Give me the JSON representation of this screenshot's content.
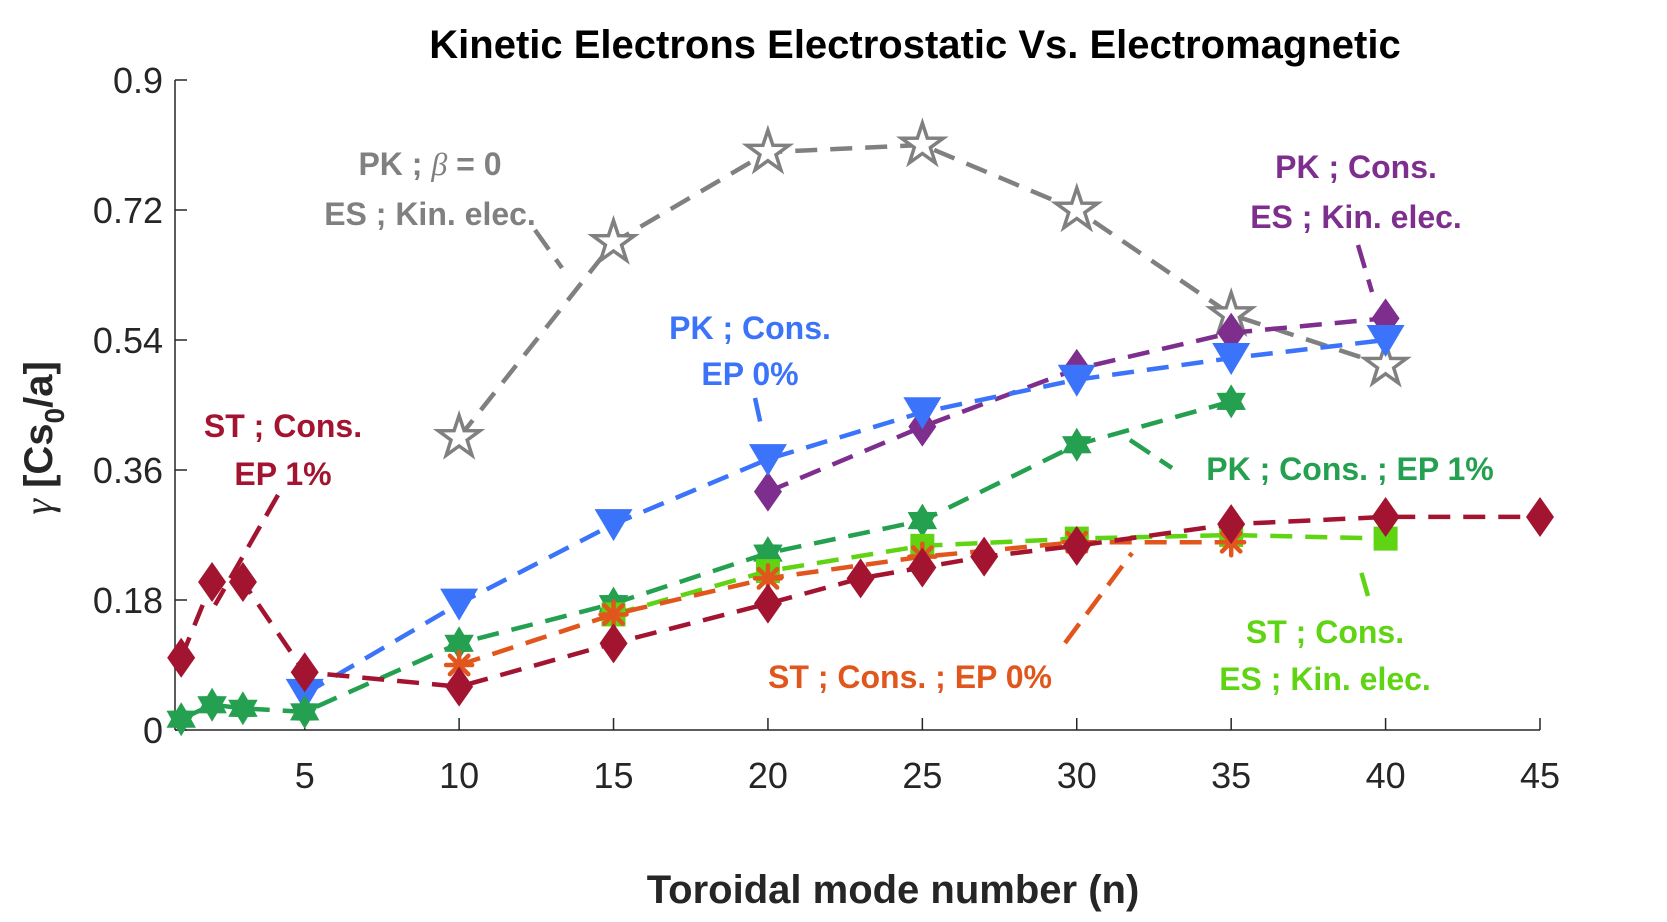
{
  "chart_data": {
    "type": "line",
    "title": "Kinetic Electrons Electrostatic Vs. Electromagnetic",
    "xlabel": "Toroidal mode number (n)",
    "ylabel": {
      "prefix": "γ",
      "main": " [Cs",
      "sub": "0",
      "suffix": "/a]"
    },
    "xlim": [
      0.8,
      45
    ],
    "ylim": [
      0,
      0.9
    ],
    "xticks": [
      5,
      10,
      15,
      20,
      25,
      30,
      35,
      40,
      45
    ],
    "yticks": [
      0,
      0.18,
      0.36,
      0.54,
      0.72,
      0.9
    ],
    "ytick_labels": [
      "0",
      "0.18",
      "0.36",
      "0.54",
      "0.72",
      "0.9"
    ],
    "series": [
      {
        "name": "PK ; β = 0 ES ; Kin. elec.",
        "color": "#808080",
        "marker": "star5",
        "x": [
          10,
          15,
          20,
          25,
          30,
          35,
          40
        ],
        "y": [
          0.405,
          0.675,
          0.8,
          0.81,
          0.72,
          0.575,
          0.505
        ]
      },
      {
        "name": "PK ; Cons. ES ; Kin. elec.",
        "color": "#7E2F8E",
        "marker": "diamond",
        "x": [
          20,
          25,
          30,
          35,
          40
        ],
        "y": [
          0.33,
          0.42,
          0.5,
          0.55,
          0.57
        ]
      },
      {
        "name": "PK ; Cons. EP 0%",
        "color": "#3B73FA",
        "marker": "triangle-down",
        "x": [
          5,
          10,
          15,
          20,
          25,
          30,
          35,
          40
        ],
        "y": [
          0.05,
          0.175,
          0.285,
          0.375,
          0.44,
          0.485,
          0.515,
          0.54
        ]
      },
      {
        "name": "PK ; Cons. ; EP 1%",
        "color": "#24A050",
        "marker": "star6",
        "x": [
          1,
          2,
          3,
          5,
          10,
          15,
          20,
          25,
          30,
          35
        ],
        "y": [
          0.015,
          0.035,
          0.03,
          0.025,
          0.12,
          0.175,
          0.245,
          0.29,
          0.395,
          0.455
        ]
      },
      {
        "name": "ST ; Cons. ES ; Kin. elec.",
        "color": "#5FD413",
        "marker": "square",
        "x": [
          15,
          20,
          25,
          30,
          35,
          40
        ],
        "y": [
          0.16,
          0.22,
          0.255,
          0.265,
          0.27,
          0.265
        ]
      },
      {
        "name": "ST ; Cons. ; EP 0%",
        "color": "#E0561C",
        "marker": "asterisk",
        "x": [
          10,
          15,
          20,
          25,
          30,
          35
        ],
        "y": [
          0.09,
          0.16,
          0.21,
          0.24,
          0.26,
          0.26
        ]
      },
      {
        "name": "ST ; Cons. EP 1%",
        "color": "#A2142F",
        "marker": "diamond",
        "x": [
          1,
          2,
          3,
          5,
          10,
          15,
          20,
          23,
          25,
          27,
          30,
          35,
          40,
          45
        ],
        "y": [
          0.1,
          0.205,
          0.205,
          0.08,
          0.06,
          0.12,
          0.175,
          0.21,
          0.225,
          0.24,
          0.255,
          0.285,
          0.295,
          0.295
        ]
      }
    ],
    "annotations": [
      {
        "lines": [
          "PK ; ",
          "ES ; Kin. elec."
        ],
        "beta": "β",
        "beta_suffix": " = 0",
        "color": "#808080"
      },
      {
        "lines": [
          "PK ; Cons.",
          "ES ; Kin. elec."
        ],
        "color": "#7E2F8E"
      },
      {
        "lines": [
          "PK ; Cons.",
          "EP 0%"
        ],
        "color": "#3B73FA"
      },
      {
        "lines": [
          "ST ; Cons.",
          "EP 1%"
        ],
        "color": "#A2142F"
      },
      {
        "lines": [
          "PK ; Cons. ; EP 1%"
        ],
        "color": "#24A050"
      },
      {
        "lines": [
          "ST ; Cons. ; EP 0%"
        ],
        "color": "#E0561C"
      },
      {
        "lines": [
          "ST ; Cons.",
          "ES ; Kin. elec."
        ],
        "color": "#5FD413"
      }
    ]
  }
}
